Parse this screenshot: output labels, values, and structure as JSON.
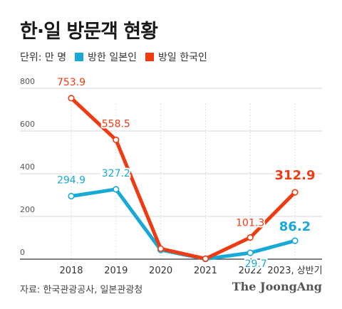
{
  "chart_data": {
    "type": "line",
    "title": "한·일 방문객 현황",
    "unit_label": "단위: 만 명",
    "x": [
      "2018",
      "2019",
      "2020",
      "2021",
      "2022",
      "2023, 상반기"
    ],
    "ylim": [
      0,
      800
    ],
    "yticks": [
      0,
      200,
      400,
      600,
      800
    ],
    "grid": true,
    "legend_position": "top-left",
    "series": [
      {
        "name": "방한 일본인",
        "color": "#18a9d6",
        "values": [
          294.9,
          327.2,
          43,
          1,
          29.7,
          86.2
        ],
        "labels": [
          "294.9",
          "327.2",
          "",
          "",
          "29.7",
          "86.2"
        ]
      },
      {
        "name": "방일 한국인",
        "color": "#f03a12",
        "values": [
          753.9,
          558.5,
          49,
          2,
          101.3,
          312.9
        ],
        "labels": [
          "753.9",
          "558.5",
          "",
          "",
          "101.3",
          "312.9"
        ]
      }
    ]
  },
  "footer": {
    "source": "자료: 한국관광공사, 일본관광청",
    "brand": "The JoongAng"
  }
}
